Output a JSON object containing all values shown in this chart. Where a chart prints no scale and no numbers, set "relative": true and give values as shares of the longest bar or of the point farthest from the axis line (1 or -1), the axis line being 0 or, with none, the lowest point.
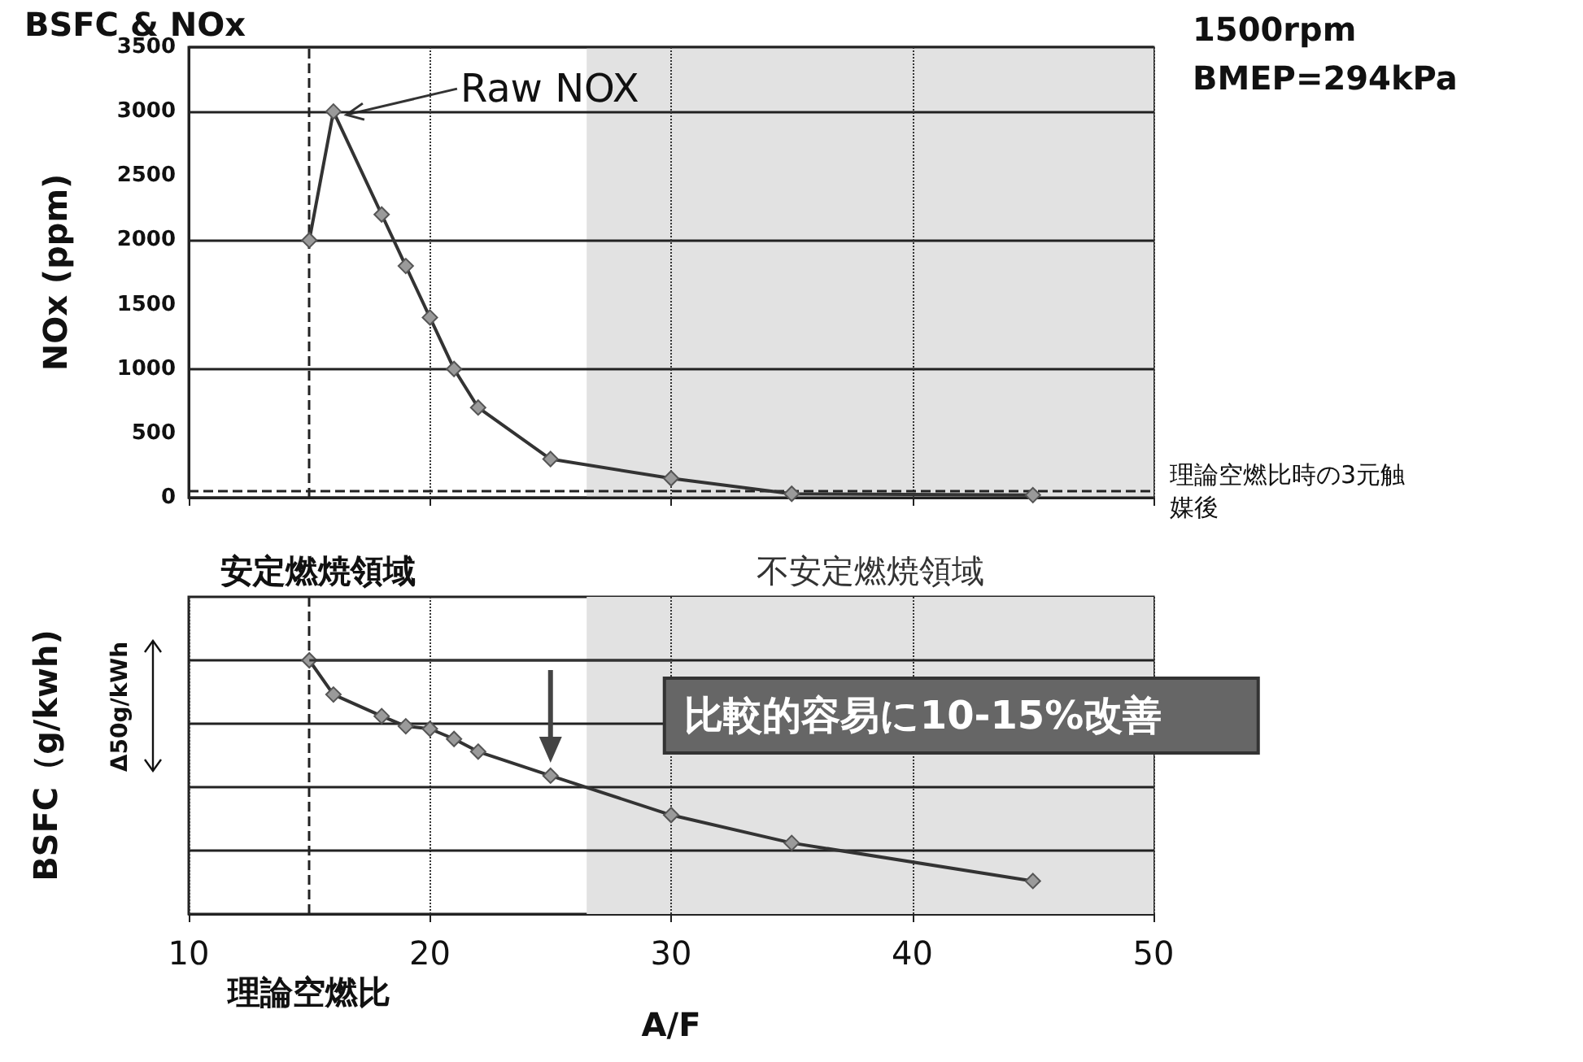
{
  "chart_data": [
    {
      "type": "line",
      "title": "BSFC & NOx",
      "ylabel": "NOx (ppm)",
      "x": [
        15,
        16,
        18,
        19,
        20,
        21,
        22,
        25,
        30,
        35,
        45
      ],
      "values": [
        2000,
        3000,
        2200,
        1800,
        1400,
        1000,
        700,
        300,
        150,
        30,
        20
      ],
      "color": "#333333",
      "marker": "diamond",
      "xlim": [
        10,
        50
      ],
      "xticks": [
        10,
        20,
        30,
        40,
        50
      ],
      "ylim": [
        0,
        3500
      ],
      "yticks": [
        0,
        500,
        1000,
        1500,
        2000,
        2500,
        3000,
        3500
      ],
      "grid": true,
      "tick_labels": "y",
      "ref_lines": [
        {
          "axis": "x",
          "value": 15,
          "line_style": "dashed"
        },
        {
          "axis": "y",
          "value": 50,
          "label": "理論空燃比時の3元触媒後",
          "line_style": "dashed"
        }
      ],
      "bands": [
        {
          "axis": "x",
          "from": 26.5,
          "to": 50,
          "color": "#e2e2e2"
        }
      ],
      "annotations": [
        {
          "text": "Raw NOX",
          "x": 16,
          "y": 3000
        },
        "1500rpm",
        "BMEP=294kPa"
      ]
    },
    {
      "type": "line",
      "ylabel": "BSFC（g/kwh)",
      "xlabel": "A/F",
      "relative": true,
      "x": [
        15,
        16,
        18,
        19,
        20,
        21,
        22,
        25,
        30,
        35,
        45
      ],
      "values": [
        1.0,
        0.865,
        0.78,
        0.74,
        0.73,
        0.69,
        0.64,
        0.545,
        0.39,
        0.28,
        0.13
      ],
      "color": "#333333",
      "marker": "diamond",
      "xlim": [
        10,
        50
      ],
      "xticks": [
        10,
        20,
        30,
        40,
        50
      ],
      "grid": true,
      "tick_labels": "x",
      "ref_lines": [
        {
          "axis": "x",
          "value": 15,
          "label": "理論空燃比",
          "line_style": "dashed"
        }
      ],
      "bands": [
        {
          "axis": "x",
          "from": 26.5,
          "to": 50,
          "label": "不安定燃焼領域",
          "color": "#e2e2e2"
        }
      ],
      "annotations": [
        "安定燃焼領域",
        "Δ50g/kWh",
        "比較的容易に10-15%改善"
      ]
    }
  ]
}
